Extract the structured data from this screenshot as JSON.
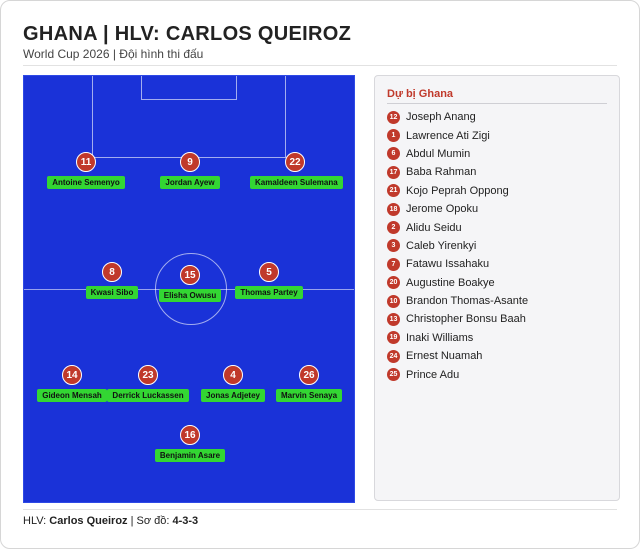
{
  "header": {
    "title": "GHANA | HLV: CARLOS QUEIROZ",
    "subtitle": "World Cup 2026 | Đội hình thi đấu"
  },
  "colors": {
    "pitch": "#1a32d8",
    "badge": "#c0392b",
    "name_tag": "#33d633"
  },
  "lineup": [
    {
      "number": "11",
      "name": "Antoine Semenyo"
    },
    {
      "number": "9",
      "name": "Jordan Ayew"
    },
    {
      "number": "22",
      "name": "Kamaldeen Sulemana"
    },
    {
      "number": "8",
      "name": "Kwasi Sibo"
    },
    {
      "number": "15",
      "name": "Elisha Owusu"
    },
    {
      "number": "5",
      "name": "Thomas Partey"
    },
    {
      "number": "14",
      "name": "Gideon Mensah"
    },
    {
      "number": "23",
      "name": "Derrick Luckassen"
    },
    {
      "number": "4",
      "name": "Jonas Adjetey"
    },
    {
      "number": "26",
      "name": "Marvin Senaya"
    },
    {
      "number": "16",
      "name": "Benjamin Asare"
    }
  ],
  "bench": {
    "title": "Dự bị Ghana",
    "players": [
      {
        "number": "12",
        "name": "Joseph Anang"
      },
      {
        "number": "1",
        "name": "Lawrence Ati Zigi"
      },
      {
        "number": "6",
        "name": "Abdul Mumin"
      },
      {
        "number": "17",
        "name": "Baba Rahman"
      },
      {
        "number": "21",
        "name": "Kojo Peprah Oppong"
      },
      {
        "number": "18",
        "name": "Jerome Opoku"
      },
      {
        "number": "2",
        "name": "Alidu Seidu"
      },
      {
        "number": "3",
        "name": "Caleb Yirenkyi"
      },
      {
        "number": "7",
        "name": "Fatawu Issahaku"
      },
      {
        "number": "20",
        "name": "Augustine Boakye"
      },
      {
        "number": "10",
        "name": "Brandon Thomas-Asante"
      },
      {
        "number": "13",
        "name": "Christopher Bonsu Baah"
      },
      {
        "number": "19",
        "name": "Inaki Williams"
      },
      {
        "number": "24",
        "name": "Ernest Nuamah"
      },
      {
        "number": "25",
        "name": "Prince Adu"
      }
    ]
  },
  "footer": {
    "coach_label": "HLV:",
    "coach_name": "Carlos Queiroz",
    "separator": "|",
    "formation_label": "Sơ đồ:",
    "formation": "4-3-3"
  }
}
